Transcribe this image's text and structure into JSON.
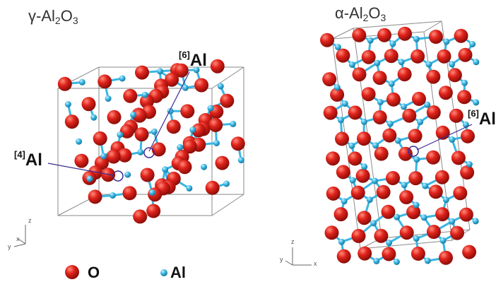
{
  "panels": [
    {
      "title_prefix": "γ-Al",
      "title_sub1": "2",
      "title_mid": "O",
      "title_sub2": "3",
      "labels": [
        {
          "sup": "[6]",
          "text": "Al"
        },
        {
          "sup": "[4]",
          "text": "Al"
        }
      ],
      "axes": {
        "z": "z",
        "x": "x",
        "y": "y"
      }
    },
    {
      "title_prefix": "α-Al",
      "title_sub1": "2",
      "title_mid": "O",
      "title_sub2": "3",
      "labels": [
        {
          "sup": "[6]",
          "text": "Al"
        }
      ],
      "axes": {
        "z": "z",
        "x": "x",
        "y": "y"
      }
    }
  ],
  "legend": [
    {
      "label": "O",
      "color": "#e0231b"
    },
    {
      "label": "Al",
      "color": "#3ab6e3"
    }
  ],
  "colors": {
    "oxygen": "#e0231b",
    "aluminum": "#3ab6e3",
    "bond": "#3ab6e3",
    "frame": "#8a8a8a",
    "marker": "#3b2d94"
  }
}
